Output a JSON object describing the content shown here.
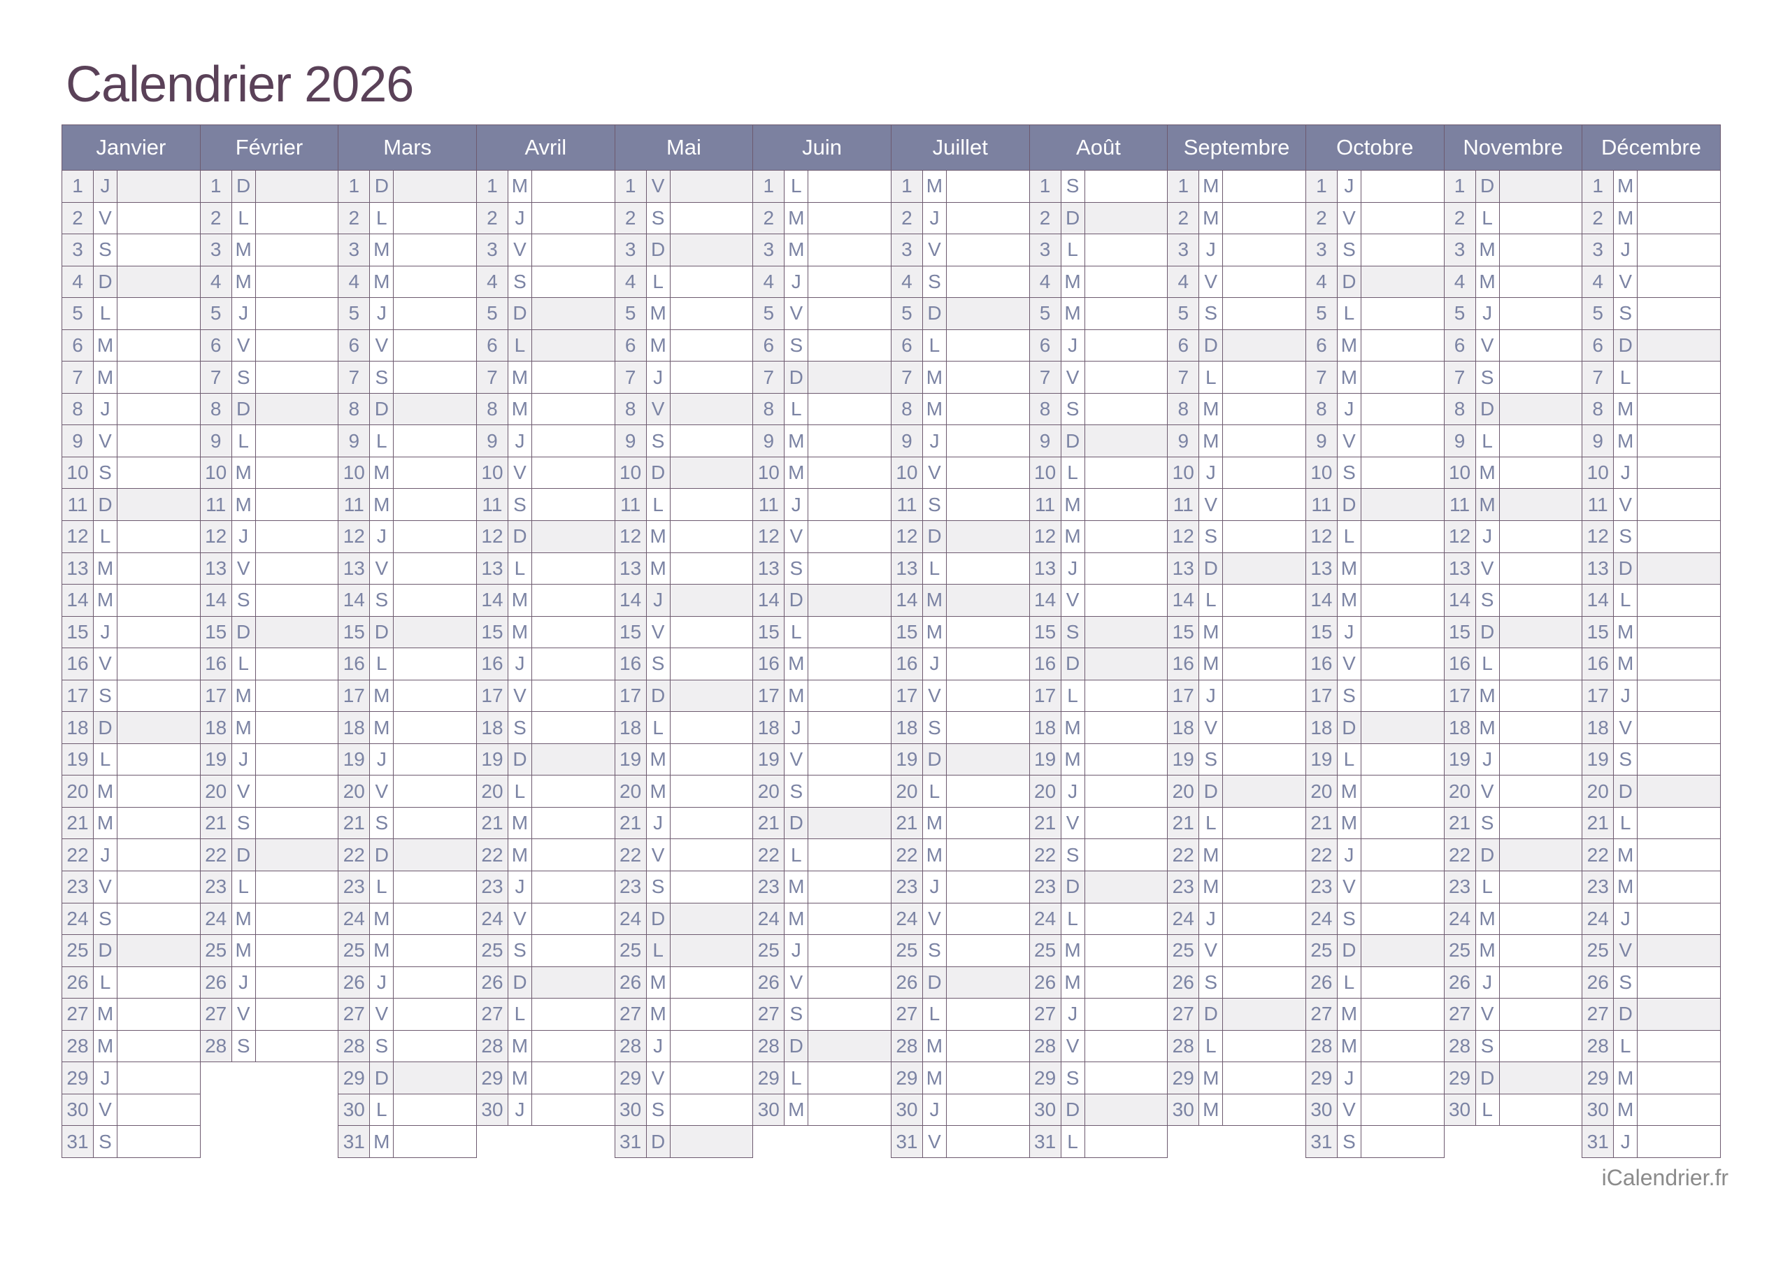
{
  "title": "Calendrier 2026",
  "footer": {
    "brand": "iCalendrier.fr"
  },
  "colors": {
    "line": "#6d5a6f",
    "headerbg": "#7c81a0",
    "shade": "#f0eff1",
    "daytext": "#7b83a3",
    "titlecolor": "#5a4158",
    "footercolor": "#8b8b8b",
    "monthtext": "#ffffff"
  },
  "calendar": {
    "year": "2026",
    "months": [
      {
        "name": "Janvier",
        "letters": [
          "J",
          "V",
          "S",
          "D",
          "L",
          "M",
          "M",
          "J",
          "V",
          "S",
          "D",
          "L",
          "M",
          "M",
          "J",
          "V",
          "S",
          "D",
          "L",
          "M",
          "M",
          "J",
          "V",
          "S",
          "D",
          "L",
          "M",
          "M",
          "J",
          "V",
          "S"
        ],
        "shaded": [
          1,
          4,
          11,
          18,
          25
        ]
      },
      {
        "name": "Février",
        "letters": [
          "D",
          "L",
          "M",
          "M",
          "J",
          "V",
          "S",
          "D",
          "L",
          "M",
          "M",
          "J",
          "V",
          "S",
          "D",
          "L",
          "M",
          "M",
          "J",
          "V",
          "S",
          "D",
          "L",
          "M",
          "M",
          "J",
          "V",
          "S"
        ],
        "shaded": [
          1,
          8,
          15,
          22
        ]
      },
      {
        "name": "Mars",
        "letters": [
          "D",
          "L",
          "M",
          "M",
          "J",
          "V",
          "S",
          "D",
          "L",
          "M",
          "M",
          "J",
          "V",
          "S",
          "D",
          "L",
          "M",
          "M",
          "J",
          "V",
          "S",
          "D",
          "L",
          "M",
          "M",
          "J",
          "V",
          "S",
          "D",
          "L",
          "M"
        ],
        "shaded": [
          1,
          8,
          15,
          22,
          29
        ]
      },
      {
        "name": "Avril",
        "letters": [
          "M",
          "J",
          "V",
          "S",
          "D",
          "L",
          "M",
          "M",
          "J",
          "V",
          "S",
          "D",
          "L",
          "M",
          "M",
          "J",
          "V",
          "S",
          "D",
          "L",
          "M",
          "M",
          "J",
          "V",
          "S",
          "D",
          "L",
          "M",
          "M",
          "J"
        ],
        "shaded": [
          5,
          6,
          12,
          19,
          26
        ]
      },
      {
        "name": "Mai",
        "letters": [
          "V",
          "S",
          "D",
          "L",
          "M",
          "M",
          "J",
          "V",
          "S",
          "D",
          "L",
          "M",
          "M",
          "J",
          "V",
          "S",
          "D",
          "L",
          "M",
          "M",
          "J",
          "V",
          "S",
          "D",
          "L",
          "M",
          "M",
          "J",
          "V",
          "S",
          "D"
        ],
        "shaded": [
          1,
          3,
          8,
          10,
          14,
          17,
          24,
          25,
          31
        ]
      },
      {
        "name": "Juin",
        "letters": [
          "L",
          "M",
          "M",
          "J",
          "V",
          "S",
          "D",
          "L",
          "M",
          "M",
          "J",
          "V",
          "S",
          "D",
          "L",
          "M",
          "M",
          "J",
          "V",
          "S",
          "D",
          "L",
          "M",
          "M",
          "J",
          "V",
          "S",
          "D",
          "L",
          "M"
        ],
        "shaded": [
          7,
          14,
          21,
          28
        ]
      },
      {
        "name": "Juillet",
        "letters": [
          "M",
          "J",
          "V",
          "S",
          "D",
          "L",
          "M",
          "M",
          "J",
          "V",
          "S",
          "D",
          "L",
          "M",
          "M",
          "J",
          "V",
          "S",
          "D",
          "L",
          "M",
          "M",
          "J",
          "V",
          "S",
          "D",
          "L",
          "M",
          "M",
          "J",
          "V"
        ],
        "shaded": [
          5,
          12,
          14,
          19,
          26
        ]
      },
      {
        "name": "Août",
        "letters": [
          "S",
          "D",
          "L",
          "M",
          "M",
          "J",
          "V",
          "S",
          "D",
          "L",
          "M",
          "M",
          "J",
          "V",
          "S",
          "D",
          "L",
          "M",
          "M",
          "J",
          "V",
          "S",
          "D",
          "L",
          "M",
          "M",
          "J",
          "V",
          "S",
          "D",
          "L"
        ],
        "shaded": [
          2,
          9,
          15,
          16,
          23,
          30
        ]
      },
      {
        "name": "Septembre",
        "letters": [
          "M",
          "M",
          "J",
          "V",
          "S",
          "D",
          "L",
          "M",
          "M",
          "J",
          "V",
          "S",
          "D",
          "L",
          "M",
          "M",
          "J",
          "V",
          "S",
          "D",
          "L",
          "M",
          "M",
          "J",
          "V",
          "S",
          "D",
          "L",
          "M",
          "M"
        ],
        "shaded": [
          6,
          13,
          20,
          27
        ]
      },
      {
        "name": "Octobre",
        "letters": [
          "J",
          "V",
          "S",
          "D",
          "L",
          "M",
          "M",
          "J",
          "V",
          "S",
          "D",
          "L",
          "M",
          "M",
          "J",
          "V",
          "S",
          "D",
          "L",
          "M",
          "M",
          "J",
          "V",
          "S",
          "D",
          "L",
          "M",
          "M",
          "J",
          "V",
          "S"
        ],
        "shaded": [
          4,
          11,
          18,
          25
        ]
      },
      {
        "name": "Novembre",
        "letters": [
          "D",
          "L",
          "M",
          "M",
          "J",
          "V",
          "S",
          "D",
          "L",
          "M",
          "M",
          "J",
          "V",
          "S",
          "D",
          "L",
          "M",
          "M",
          "J",
          "V",
          "S",
          "D",
          "L",
          "M",
          "M",
          "J",
          "V",
          "S",
          "D",
          "L"
        ],
        "shaded": [
          1,
          8,
          11,
          15,
          22,
          29
        ]
      },
      {
        "name": "Décembre",
        "letters": [
          "M",
          "M",
          "J",
          "V",
          "S",
          "D",
          "L",
          "M",
          "M",
          "J",
          "V",
          "S",
          "D",
          "L",
          "M",
          "M",
          "J",
          "V",
          "S",
          "D",
          "L",
          "M",
          "M",
          "J",
          "V",
          "S",
          "D",
          "L",
          "M",
          "M",
          "J"
        ],
        "shaded": [
          6,
          13,
          20,
          25,
          27
        ]
      }
    ]
  }
}
